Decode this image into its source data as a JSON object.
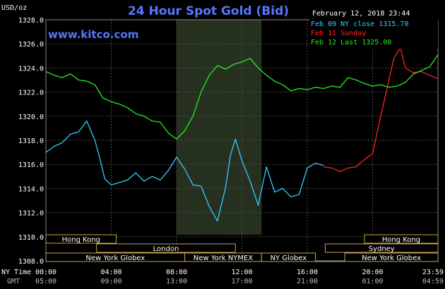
{
  "chart_data": {
    "type": "line",
    "title": "24 Hour Spot Gold (Bid)",
    "site": "www.kitco.com",
    "timestamp": "February 12, 2018 23:44",
    "ylabel": "USD/oz",
    "ylim": [
      1308,
      1328
    ],
    "yticks": [
      "1328.0",
      "1326.0",
      "1324.0",
      "1322.0",
      "1320.0",
      "1318.0",
      "1316.0",
      "1314.0",
      "1312.0",
      "1310.0",
      "1308.0"
    ],
    "xlim": [
      0,
      24
    ],
    "ny_time_label": "NY Time",
    "gmt_label": "GMT",
    "x_ticks": [
      {
        "x": 0,
        "ny": "00:00",
        "gmt": "05:00"
      },
      {
        "x": 4,
        "ny": "04:00",
        "gmt": "09:00"
      },
      {
        "x": 8,
        "ny": "08:00",
        "gmt": "13:00"
      },
      {
        "x": 12,
        "ny": "12:00",
        "gmt": "17:00"
      },
      {
        "x": 16,
        "ny": "16:00",
        "gmt": "21:00"
      },
      {
        "x": 20,
        "ny": "20:00",
        "gmt": "01:00"
      },
      {
        "x": 24,
        "ny": "23:59",
        "gmt": "04:59"
      }
    ],
    "shaded_region": [
      8.0,
      13.2
    ],
    "legend": [
      {
        "label": "Feb 09 NY close 1315.70",
        "color": "#33ccff"
      },
      {
        "label": "Feb 11 Sunday",
        "color": "#ff2222"
      },
      {
        "label": "Feb 12 Last 1325.00",
        "color": "#22ee22"
      }
    ],
    "series": [
      {
        "name": "Feb 09 NY close 1315.70",
        "color": "#33ccff",
        "x": [
          0,
          0.5,
          1,
          1.5,
          2,
          2.5,
          3,
          3.3,
          3.6,
          4,
          4.5,
          5,
          5.5,
          6,
          6.5,
          7,
          7.5,
          8,
          8.5,
          9,
          9.5,
          10,
          10.5,
          11,
          11.3,
          11.6,
          12,
          12.5,
          13,
          13.5,
          14,
          14.5,
          15,
          15.5,
          16,
          16.5,
          17
        ],
        "y": [
          1317.0,
          1317.5,
          1317.8,
          1318.5,
          1318.7,
          1319.6,
          1318.0,
          1316.5,
          1314.8,
          1314.3,
          1314.5,
          1314.7,
          1315.3,
          1314.6,
          1315.0,
          1314.7,
          1315.5,
          1316.6,
          1315.6,
          1314.3,
          1314.2,
          1312.5,
          1311.3,
          1314.1,
          1316.8,
          1318.1,
          1316.3,
          1314.6,
          1312.6,
          1315.8,
          1313.7,
          1314.0,
          1313.3,
          1313.5,
          1315.7,
          1316.1,
          1315.9
        ]
      },
      {
        "name": "Feb 11 Sunday",
        "color": "#ff2222",
        "x": [
          17,
          17.5,
          18,
          18.5,
          19,
          19.5,
          20,
          20.3,
          20.7,
          21,
          21.3,
          21.7,
          22,
          22.5,
          23,
          23.5,
          24
        ],
        "y": [
          1315.8,
          1315.7,
          1315.4,
          1315.7,
          1315.8,
          1316.4,
          1316.9,
          1318.8,
          1321.2,
          1323.0,
          1324.8,
          1325.7,
          1324.0,
          1323.6,
          1323.7,
          1323.4,
          1323.1
        ]
      },
      {
        "name": "Feb 12 Last 1325.00",
        "color": "#22ee22",
        "x": [
          0,
          0.5,
          1,
          1.5,
          2,
          2.5,
          3,
          3.5,
          4,
          4.5,
          5,
          5.5,
          6,
          6.5,
          7,
          7.5,
          8,
          8.5,
          9,
          9.5,
          10,
          10.5,
          11,
          11.5,
          12,
          12.5,
          13,
          13.5,
          14,
          14.5,
          15,
          15.5,
          16,
          16.5,
          17,
          17.5,
          18,
          18.5,
          19,
          19.5,
          20,
          20.5,
          21,
          21.5,
          22,
          22.5,
          23,
          23.5,
          24
        ],
        "y": [
          1323.7,
          1323.4,
          1323.2,
          1323.5,
          1323.0,
          1322.9,
          1322.6,
          1321.5,
          1321.2,
          1321.0,
          1320.7,
          1320.2,
          1320.0,
          1319.6,
          1319.5,
          1318.6,
          1318.1,
          1318.8,
          1320.0,
          1322.0,
          1323.4,
          1324.2,
          1323.9,
          1324.3,
          1324.5,
          1324.8,
          1324.0,
          1323.4,
          1322.9,
          1322.6,
          1322.1,
          1322.3,
          1322.2,
          1322.4,
          1322.3,
          1322.5,
          1322.4,
          1323.2,
          1323.0,
          1322.7,
          1322.5,
          1322.6,
          1322.4,
          1322.5,
          1322.8,
          1323.5,
          1323.8,
          1324.1,
          1325.1
        ]
      }
    ],
    "sessions": [
      {
        "label": "Hong Kong",
        "start": 0,
        "end": 4.3,
        "row": 0
      },
      {
        "label": "Hong Kong",
        "start": 19.5,
        "end": 24,
        "row": 0
      },
      {
        "label": "London",
        "start": 3.1,
        "end": 11.6,
        "row": 1
      },
      {
        "label": "Sydney",
        "start": 17.1,
        "end": 24,
        "row": 1
      },
      {
        "label": "New York Globex",
        "start": 0,
        "end": 8.5,
        "row": 2
      },
      {
        "label": "New York NYMEX",
        "start": 8.5,
        "end": 13.2,
        "row": 2
      },
      {
        "label": "NY Globex",
        "start": 13.2,
        "end": 16.5,
        "row": 2
      },
      {
        "label": "New York Globex",
        "start": 18.3,
        "end": 24,
        "row": 2
      }
    ]
  }
}
